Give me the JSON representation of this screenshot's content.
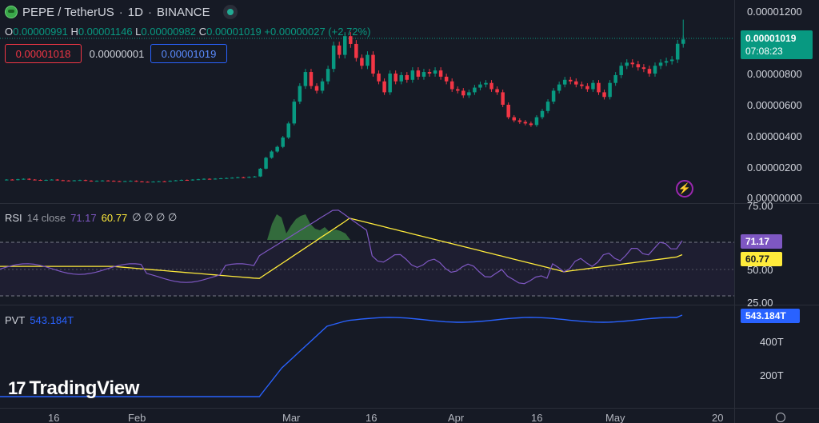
{
  "legend": {
    "symbol": "PEPE / TetherUS",
    "interval": "1D",
    "exchange": "BINANCE",
    "sep": "·"
  },
  "ohlc": {
    "o_label": "O",
    "o": "0.00000991",
    "h_label": "H",
    "h": "0.00001146",
    "l_label": "L",
    "l": "0.00000982",
    "c_label": "C",
    "c": "0.00001019",
    "change": "+0.00000027 (+2.72%)"
  },
  "trade": {
    "sell": "0.00001018",
    "spread": "0.00000001",
    "buy": "0.00001019"
  },
  "price_tag": {
    "price": "0.00001019",
    "countdown": "07:08:23"
  },
  "price_axis": [
    "0.00001200",
    "0.00001000",
    "0.00000800",
    "0.00000600",
    "0.00000400",
    "0.00000200",
    "0.00000000"
  ],
  "rsi": {
    "name": "RSI",
    "params": "14 close",
    "value": "71.17",
    "ma_value": "60.77",
    "empties": "∅ ∅ ∅ ∅",
    "axis": [
      "75.00",
      "50.00",
      "25.00"
    ],
    "tag_rsi": "71.17",
    "tag_ma": "60.77"
  },
  "pvt": {
    "name": "PVT",
    "value": "543.184T",
    "tag": "543.184T",
    "axis": [
      "400T",
      "200T"
    ]
  },
  "time_axis": [
    "16",
    "Feb",
    "Mar",
    "16",
    "Apr",
    "16",
    "May",
    "20"
  ],
  "branding": {
    "logo_mark": "17",
    "logo_text": "TradingView"
  },
  "colors": {
    "up": "#089981",
    "down": "#f23645",
    "rsi": "#7e57c2",
    "rsi_ma": "#ffeb3b",
    "pvt": "#2962ff",
    "bg": "#161a25"
  },
  "chart_data": [
    {
      "type": "candlestick",
      "title": "PEPE / TetherUS · 1D · BINANCE",
      "ylim": [
        0,
        1.2e-05
      ],
      "last": 1.019e-05,
      "x_ticks": [
        "16",
        "Feb",
        "Mar",
        "16",
        "Apr",
        "16",
        "May",
        "20"
      ],
      "close_series": [
        1.2e-06,
        1.18e-06,
        1.22e-06,
        1.25e-06,
        1.2e-06,
        1.18e-06,
        1.15e-06,
        1.18e-06,
        1.2e-06,
        1.16e-06,
        1.14e-06,
        1.12e-06,
        1.15e-06,
        1.17e-06,
        1.13e-06,
        1.1e-06,
        1.12e-06,
        1.14e-06,
        1.12e-06,
        1.1e-06,
        1.08e-06,
        1.1e-06,
        1.12e-06,
        1.08e-06,
        1.06e-06,
        1.05e-06,
        1.07e-06,
        1.09e-06,
        1.08e-06,
        1.12e-06,
        1.15e-06,
        1.18e-06,
        1.16e-06,
        1.2e-06,
        1.22e-06,
        1.25e-06,
        1.23e-06,
        1.26e-06,
        1.28e-06,
        1.3e-06,
        1.32e-06,
        1.35e-06,
        1.33e-06,
        1.37e-06,
        1.4e-06,
        1.9e-06,
        2.6e-06,
        3e-06,
        3.3e-06,
        3.9e-06,
        4.8e-06,
        6.2e-06,
        7.2e-06,
        8.1e-06,
        7.2e-06,
        6.9e-06,
        7.5e-06,
        8.3e-06,
        9.8e-06,
        9.2e-06,
        1.04e-05,
        9.9e-06,
        9e-06,
        8.5e-06,
        9.2e-06,
        8e-06,
        7.5e-06,
        6.8e-06,
        8e-06,
        7.5e-06,
        7.9e-06,
        7.6e-06,
        8.2e-06,
        7.8e-06,
        8.1e-06,
        8e-06,
        8.2e-06,
        7.8e-06,
        7.5e-06,
        7e-06,
        6.9e-06,
        6.6e-06,
        6.8e-06,
        7.1e-06,
        7.3e-06,
        7.4e-06,
        7e-06,
        6.8e-06,
        6e-06,
        5.2e-06,
        5e-06,
        4.9e-06,
        4.8e-06,
        4.7e-06,
        5.2e-06,
        5.6e-06,
        6.2e-06,
        6.9e-06,
        7.3e-06,
        7.6e-06,
        7.5e-06,
        7.3e-06,
        7.2e-06,
        7e-06,
        7.4e-06,
        6.8e-06,
        6.5e-06,
        7.4e-06,
        7.9e-06,
        8.5e-06,
        8.7e-06,
        8.6e-06,
        8.4e-06,
        8.3e-06,
        8e-06,
        8.5e-06,
        8.7e-06,
        8.8e-06,
        8.9e-06,
        9.91e-06,
        1.019e-05
      ]
    },
    {
      "type": "line",
      "title": "RSI 14 close",
      "ylim": [
        0,
        100
      ],
      "series": [
        {
          "name": "RSI",
          "last": 71.17
        },
        {
          "name": "RSI MA",
          "last": 60.77
        }
      ],
      "bands": [
        70,
        50,
        30
      ]
    },
    {
      "type": "line",
      "title": "PVT",
      "series": [
        {
          "name": "PVT",
          "last": "543.184T"
        }
      ],
      "y_ticks": [
        "400T",
        "200T"
      ]
    }
  ]
}
